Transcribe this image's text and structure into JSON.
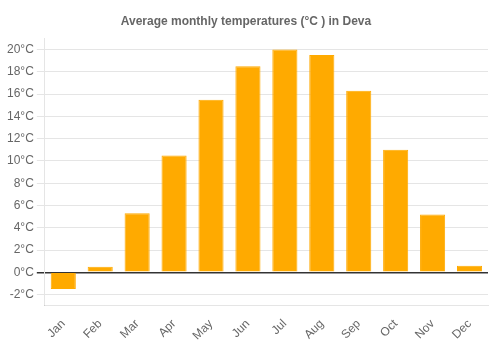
{
  "chart_data": {
    "type": "bar",
    "title": "Average monthly temperatures (°C ) in Deva",
    "categories": [
      "Jan",
      "Feb",
      "Mar",
      "Apr",
      "May",
      "Jun",
      "Jul",
      "Aug",
      "Sep",
      "Oct",
      "Nov",
      "Dec"
    ],
    "values": [
      -1.5,
      0.5,
      5.3,
      10.5,
      15.5,
      18.5,
      20.0,
      19.5,
      16.3,
      11.0,
      5.2,
      0.6
    ],
    "color": "#FFAA00",
    "ylim": [
      -3,
      21
    ],
    "yticks": [
      {
        "value": -2,
        "label": "-2°C"
      },
      {
        "value": 0,
        "label": "0°C"
      },
      {
        "value": 2,
        "label": "2°C"
      },
      {
        "value": 4,
        "label": "4°C"
      },
      {
        "value": 6,
        "label": "6°C"
      },
      {
        "value": 8,
        "label": "8°C"
      },
      {
        "value": 10,
        "label": "10°C"
      },
      {
        "value": 12,
        "label": "12°C"
      },
      {
        "value": 14,
        "label": "14°C"
      },
      {
        "value": 16,
        "label": "16°C"
      },
      {
        "value": 18,
        "label": "18°C"
      },
      {
        "value": 20,
        "label": "20°C"
      }
    ],
    "grid": true
  }
}
